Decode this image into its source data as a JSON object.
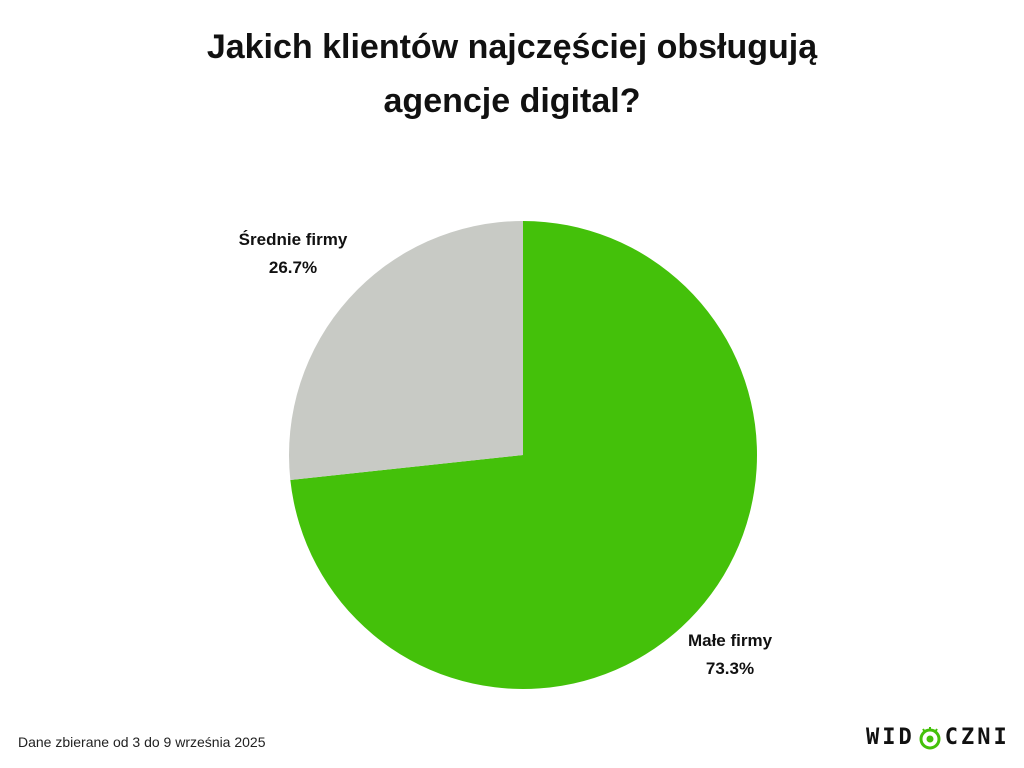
{
  "title_lines": [
    "Jakich klientów najczęściej obsługują",
    "agencje digital?"
  ],
  "footer": {
    "note": "Dane zbierane od 3 do 9 września 2025"
  },
  "logo": {
    "left_text": "WID",
    "right_text": "CZNI",
    "icon": "eye-icon",
    "accent": "#44c10a"
  },
  "chart_data": {
    "type": "pie",
    "title": "Jakich klientów najczęściej obsługują agencje digital?",
    "slices": [
      {
        "label": "Małe firmy",
        "value": 73.3,
        "display": "73.3%",
        "color": "#44c10a"
      },
      {
        "label": "Średnie firmy",
        "value": 26.7,
        "display": "26.7%",
        "color": "#c8cac5"
      }
    ],
    "start_angle_deg": 0,
    "direction": "clockwise",
    "legend": "none"
  }
}
